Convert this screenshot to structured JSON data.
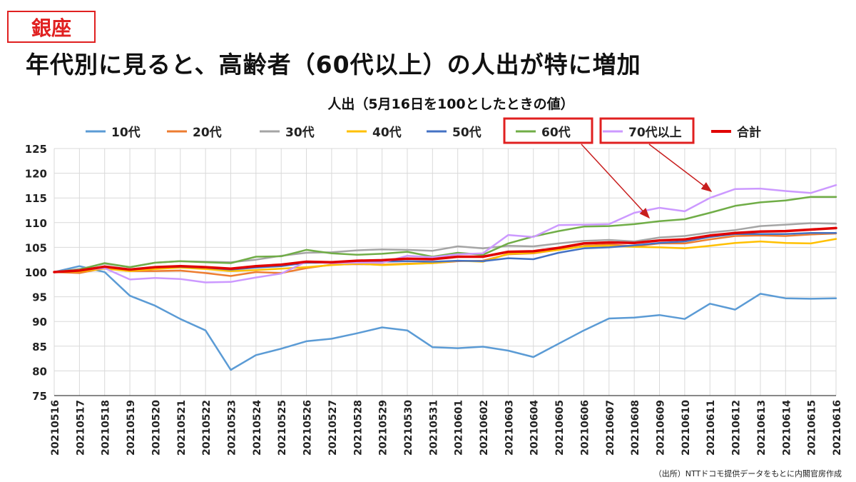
{
  "region_label": "銀座",
  "headline": "年代別に見ると、高齢者（60代以上）の人出が特に増加",
  "source_note": "（出所）NTTドコモ提供データをもとに内閣官房作成",
  "colors": {
    "highlight_box": "#e02020",
    "arrow": "#c81e1e",
    "grid": "#d9d9d9",
    "axis": "#404040"
  },
  "highlighted_legend": [
    "60代",
    "70代以上"
  ],
  "chart_data": {
    "type": "line",
    "title": "人出（5月16日を100としたときの値）",
    "xlabel": "",
    "ylabel": "",
    "ylim": [
      75,
      125
    ],
    "yticks": [
      75,
      80,
      85,
      90,
      95,
      100,
      105,
      110,
      115,
      120,
      125
    ],
    "grid": true,
    "legend_position": "top",
    "categories": [
      "20210516",
      "20210517",
      "20210518",
      "20210519",
      "20210520",
      "20210521",
      "20210522",
      "20210523",
      "20210524",
      "20210525",
      "20210526",
      "20210527",
      "20210528",
      "20210529",
      "20210530",
      "20210531",
      "20210601",
      "20210602",
      "20210603",
      "20210604",
      "20210605",
      "20210606",
      "20210607",
      "20210608",
      "20210609",
      "20210610",
      "20210611",
      "20210612",
      "20210613",
      "20210614",
      "20210615",
      "20210616"
    ],
    "series": [
      {
        "name": "10代",
        "color": "#5b9bd5",
        "width": 2.5,
        "values": [
          100,
          101.2,
          100,
          95.2,
          93.2,
          90.5,
          88.2,
          80.2,
          83.2,
          84.5,
          86,
          86.5,
          87.6,
          88.8,
          88.2,
          84.8,
          84.6,
          84.9,
          84.1,
          82.8,
          85.5,
          88.2,
          90.6,
          90.8,
          91.3,
          90.5,
          93.6,
          92.4,
          95.6,
          94.7,
          94.6,
          94.7
        ]
      },
      {
        "name": "20代",
        "color": "#ed7d31",
        "width": 2.5,
        "values": [
          100,
          99.8,
          100.8,
          100.2,
          100.2,
          100.3,
          99.8,
          99.2,
          100,
          99.8,
          100.8,
          101.5,
          101.6,
          101.5,
          101.7,
          101.8,
          102.2,
          102.3,
          103.6,
          103.8,
          104.5,
          105.3,
          105.6,
          105.2,
          105.8,
          105.8,
          106.6,
          107.3,
          107.4,
          107.3,
          107.6,
          107.8
        ]
      },
      {
        "name": "30代",
        "color": "#a5a5a5",
        "width": 2.5,
        "values": [
          100,
          100.6,
          101.7,
          101,
          101.9,
          102.2,
          102.1,
          102,
          102.5,
          103.3,
          103.9,
          104,
          104.4,
          104.6,
          104.5,
          104.3,
          105.2,
          104.8,
          105.3,
          105.2,
          105.8,
          106.3,
          106.5,
          106.2,
          107,
          107.3,
          108,
          108.5,
          109.3,
          109.6,
          109.9,
          109.8
        ]
      },
      {
        "name": "40代",
        "color": "#ffc000",
        "width": 2.5,
        "values": [
          100,
          100.1,
          100.7,
          100.2,
          100.6,
          100.9,
          100.6,
          100.2,
          100.4,
          100.7,
          101,
          101.4,
          101.7,
          101.4,
          101.6,
          101.8,
          102.3,
          102.1,
          103.7,
          103.9,
          104.5,
          105.2,
          105.3,
          105.1,
          105,
          104.8,
          105.3,
          105.9,
          106.2,
          105.9,
          105.8,
          106.7
        ]
      },
      {
        "name": "50代",
        "color": "#4472c4",
        "width": 2.5,
        "values": [
          100,
          100.3,
          101.1,
          100.5,
          101,
          101.1,
          100.9,
          100.5,
          100.9,
          101.2,
          101.9,
          101.9,
          102.2,
          102.1,
          102.2,
          102.1,
          102.3,
          102.2,
          102.8,
          102.6,
          103.9,
          104.8,
          105,
          105.4,
          105.9,
          106.2,
          107.1,
          107.7,
          107.7,
          107.7,
          107.9,
          107.9
        ]
      },
      {
        "name": "60代",
        "color": "#70ad47",
        "width": 2.5,
        "values": [
          100,
          100.5,
          101.8,
          101,
          101.9,
          102.2,
          102,
          101.8,
          103.1,
          103.2,
          104.5,
          103.8,
          103.5,
          103.7,
          104.1,
          103.1,
          103.9,
          103.5,
          105.8,
          107.2,
          108.3,
          109.2,
          109.3,
          109.7,
          110.3,
          110.7,
          112,
          113.4,
          114.1,
          114.5,
          115.2,
          115.2
        ]
      },
      {
        "name": "70代以上",
        "color": "#cc99ff",
        "width": 2.5,
        "values": [
          100,
          100.4,
          100.8,
          98.5,
          98.8,
          98.6,
          97.9,
          98,
          98.9,
          99.7,
          102.1,
          101.8,
          101.9,
          101.9,
          103.3,
          103,
          103.6,
          103.8,
          107.5,
          107.1,
          109.5,
          109.6,
          109.7,
          112,
          113,
          112.3,
          115,
          116.8,
          116.9,
          116.4,
          116,
          117.6
        ]
      },
      {
        "name": "合計",
        "color": "#e00000",
        "width": 3.5,
        "values": [
          100,
          100.3,
          101.1,
          100.5,
          101,
          101.2,
          101,
          100.7,
          101.2,
          101.5,
          102.1,
          102,
          102.3,
          102.4,
          102.7,
          102.6,
          103.1,
          103.1,
          104.1,
          104.2,
          104.9,
          105.8,
          106,
          105.9,
          106.4,
          106.6,
          107.4,
          107.9,
          108.2,
          108.3,
          108.6,
          108.9
        ]
      }
    ]
  }
}
